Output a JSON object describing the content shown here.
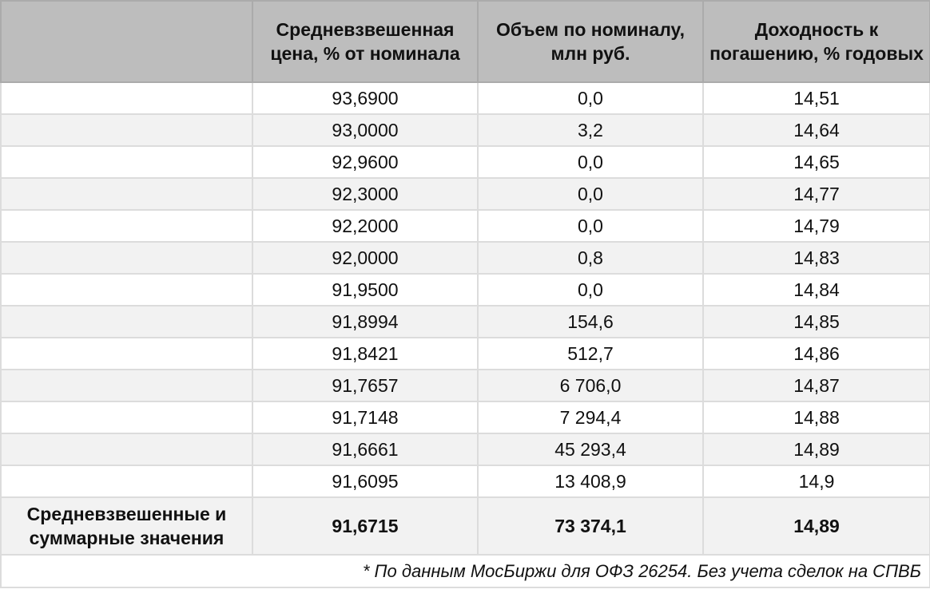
{
  "table": {
    "headers": [
      "",
      "Средневзвешенная цена, % от номинала",
      "Объем по номиналу, млн руб.",
      "Доходность к погашению, % годовых"
    ],
    "rows": [
      {
        "label": "",
        "price": "93,6900",
        "volume": "0,0",
        "yield": "14,51"
      },
      {
        "label": "",
        "price": "93,0000",
        "volume": "3,2",
        "yield": "14,64"
      },
      {
        "label": "",
        "price": "92,9600",
        "volume": "0,0",
        "yield": "14,65"
      },
      {
        "label": "",
        "price": "92,3000",
        "volume": "0,0",
        "yield": "14,77"
      },
      {
        "label": "",
        "price": "92,2000",
        "volume": "0,0",
        "yield": "14,79"
      },
      {
        "label": "",
        "price": "92,0000",
        "volume": "0,8",
        "yield": "14,83"
      },
      {
        "label": "",
        "price": "91,9500",
        "volume": "0,0",
        "yield": "14,84"
      },
      {
        "label": "",
        "price": "91,8994",
        "volume": "154,6",
        "yield": "14,85"
      },
      {
        "label": "",
        "price": "91,8421",
        "volume": "512,7",
        "yield": "14,86"
      },
      {
        "label": "",
        "price": "91,7657",
        "volume": "6 706,0",
        "yield": "14,87"
      },
      {
        "label": "",
        "price": "91,7148",
        "volume": "7 294,4",
        "yield": "14,88"
      },
      {
        "label": "",
        "price": "91,6661",
        "volume": "45 293,4",
        "yield": "14,89"
      },
      {
        "label": "",
        "price": "91,6095",
        "volume": "13 408,9",
        "yield": "14,9"
      }
    ],
    "summary": {
      "label": "Средневзвешенные и суммарные значения",
      "price": "91,6715",
      "volume": "73 374,1",
      "yield": "14,89"
    },
    "footnote": "* По данным МосБиржи для ОФЗ 26254. Без учета сделок на СПВБ"
  }
}
